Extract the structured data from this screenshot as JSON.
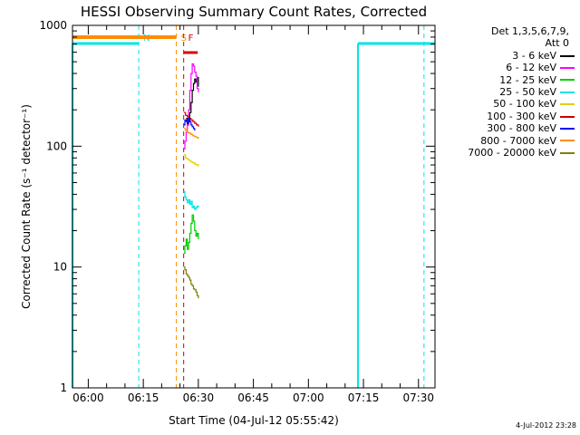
{
  "chart_data": {
    "type": "line",
    "title": "HESSI Observing Summary Count Rates, Corrected",
    "xlabel": "Start Time (04-Jul-12 05:55:42)",
    "ylabel": "Corrected Count Rate (s⁻¹ detector⁻¹)",
    "xlim": [
      "05:55:42",
      "07:34:30"
    ],
    "ylim": [
      1,
      1000
    ],
    "yscale": "log",
    "x_ticks": [
      "06:00",
      "06:15",
      "06:30",
      "06:45",
      "07:00",
      "07:15",
      "07:30"
    ],
    "y_ticks": [
      "1",
      "10",
      "100",
      "1000"
    ],
    "grid": false,
    "legend_position": "right",
    "legend_header": [
      "Det 1,3,5,6,7,9,",
      "Att 0"
    ],
    "series": [
      {
        "name": "3 - 6 keV",
        "color": "#000000",
        "points": [
          [
            "06:26:40",
            170
          ],
          [
            "06:27:00",
            150
          ],
          [
            "06:27:20",
            160
          ],
          [
            "06:27:40",
            190
          ],
          [
            "06:28:00",
            230
          ],
          [
            "06:28:20",
            290
          ],
          [
            "06:28:40",
            330
          ],
          [
            "06:29:00",
            360
          ],
          [
            "06:29:20",
            340
          ],
          [
            "06:29:40",
            370
          ],
          [
            "06:30:00",
            310
          ]
        ]
      },
      {
        "name": "6 - 12 keV",
        "color": "#ff00ff",
        "points": [
          [
            "06:26:00",
            95
          ],
          [
            "06:26:20",
            110
          ],
          [
            "06:26:40",
            130
          ],
          [
            "06:27:00",
            150
          ],
          [
            "06:27:20",
            200
          ],
          [
            "06:27:40",
            290
          ],
          [
            "06:28:00",
            400
          ],
          [
            "06:28:20",
            480
          ],
          [
            "06:28:40",
            460
          ],
          [
            "06:29:00",
            410
          ],
          [
            "06:29:20",
            380
          ],
          [
            "06:29:40",
            300
          ],
          [
            "06:30:00",
            280
          ]
        ]
      },
      {
        "name": "12 - 25 keV",
        "color": "#00cc00",
        "points": [
          [
            "06:26:00",
            13
          ],
          [
            "06:26:20",
            15
          ],
          [
            "06:26:40",
            17
          ],
          [
            "06:27:00",
            14
          ],
          [
            "06:27:20",
            16
          ],
          [
            "06:27:40",
            19
          ],
          [
            "06:28:00",
            23
          ],
          [
            "06:28:20",
            27
          ],
          [
            "06:28:40",
            24
          ],
          [
            "06:29:00",
            20
          ],
          [
            "06:29:20",
            18
          ],
          [
            "06:29:40",
            19
          ],
          [
            "06:30:00",
            17
          ]
        ]
      },
      {
        "name": "25 - 50 keV",
        "color": "#00e5e5",
        "points": [
          [
            "06:26:00",
            42
          ],
          [
            "06:26:20",
            38
          ],
          [
            "06:26:40",
            36
          ],
          [
            "06:27:00",
            34
          ],
          [
            "06:27:20",
            36
          ],
          [
            "06:27:40",
            33
          ],
          [
            "06:28:00",
            35
          ],
          [
            "06:28:20",
            31
          ],
          [
            "06:28:40",
            32
          ],
          [
            "06:29:00",
            30
          ],
          [
            "06:29:20",
            31
          ],
          [
            "06:29:40",
            32
          ],
          [
            "06:30:00",
            31
          ]
        ]
      },
      {
        "name": "50 - 100 keV",
        "color": "#e5cc00",
        "points": [
          [
            "06:26:00",
            85
          ],
          [
            "06:26:30",
            80
          ],
          [
            "06:27:00",
            78
          ],
          [
            "06:27:30",
            76
          ],
          [
            "06:28:00",
            74
          ],
          [
            "06:28:30",
            73
          ],
          [
            "06:29:00",
            71
          ],
          [
            "06:29:30",
            70
          ],
          [
            "06:30:00",
            68
          ]
        ]
      },
      {
        "name": "100 - 300 keV",
        "color": "#cc0000",
        "points": [
          [
            "06:26:00",
            190
          ],
          [
            "06:26:30",
            180
          ],
          [
            "06:27:00",
            175
          ],
          [
            "06:27:30",
            170
          ],
          [
            "06:28:00",
            165
          ],
          [
            "06:28:30",
            160
          ],
          [
            "06:29:00",
            155
          ],
          [
            "06:29:30",
            150
          ],
          [
            "06:30:00",
            145
          ]
        ]
      },
      {
        "name": "300 - 800 keV",
        "color": "#0000ff",
        "points": [
          [
            "06:26:00",
            150
          ],
          [
            "06:26:20",
            165
          ],
          [
            "06:26:40",
            160
          ],
          [
            "06:27:00",
            155
          ],
          [
            "06:27:20",
            170
          ],
          [
            "06:27:40",
            160
          ],
          [
            "06:28:00",
            150
          ],
          [
            "06:28:20",
            145
          ],
          [
            "06:28:40",
            140
          ],
          [
            "06:29:00",
            135
          ]
        ]
      },
      {
        "name": "800 - 7000 keV",
        "color": "#ff8c00",
        "points": [
          [
            "06:26:00",
            140
          ],
          [
            "06:26:30",
            135
          ],
          [
            "06:27:00",
            130
          ],
          [
            "06:27:30",
            128
          ],
          [
            "06:28:00",
            125
          ],
          [
            "06:28:30",
            122
          ],
          [
            "06:29:00",
            120
          ],
          [
            "06:29:30",
            118
          ],
          [
            "06:30:00",
            115
          ]
        ]
      },
      {
        "name": "7000 - 20000 keV",
        "color": "#808000",
        "points": [
          [
            "06:26:00",
            10
          ],
          [
            "06:26:20",
            9.5
          ],
          [
            "06:26:40",
            8.8
          ],
          [
            "06:27:00",
            8.5
          ],
          [
            "06:27:20",
            8.2
          ],
          [
            "06:27:40",
            7.8
          ],
          [
            "06:28:00",
            7.2
          ],
          [
            "06:28:20",
            7.0
          ],
          [
            "06:28:40",
            6.6
          ],
          [
            "06:29:00",
            6.5
          ],
          [
            "06:29:20",
            6.2
          ],
          [
            "06:29:40",
            5.8
          ],
          [
            "06:30:00",
            5.5
          ]
        ]
      }
    ],
    "annotations": {
      "night_bars": [
        [
          "05:55:42",
          "06:13:45"
        ],
        [
          "07:13:30",
          "07:34:30"
        ]
      ],
      "saa_bar": [
        "05:55:42",
        "06:24:00"
      ],
      "flare_bar": [
        "06:26:00",
        "06:29:50"
      ],
      "vlines": [
        {
          "time": "06:13:45",
          "label": "N",
          "color": "#00e5e5"
        },
        {
          "time": "06:24:00",
          "label": "S",
          "color": "#ff8c00"
        },
        {
          "time": "06:26:00",
          "label": "F",
          "color": "#cc0000"
        },
        {
          "time": "07:31:30",
          "label": "",
          "color": "#00e5e5"
        }
      ]
    }
  },
  "footer": {
    "timestamp": "4-Jul-2012 23:28"
  }
}
